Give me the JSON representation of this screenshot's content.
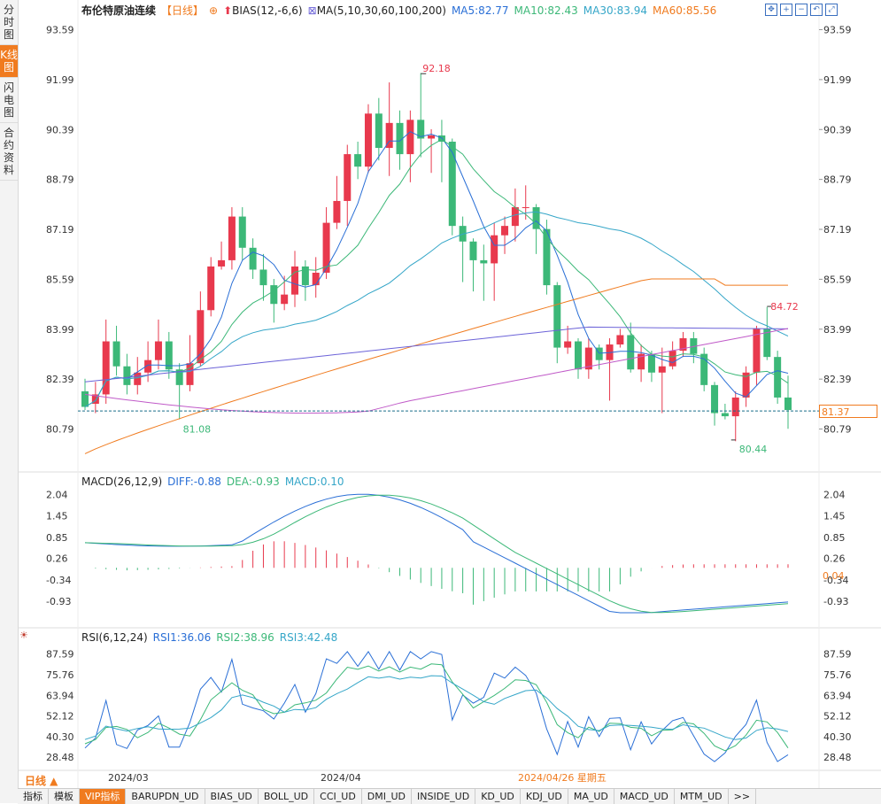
{
  "sidebar": {
    "tabs": [
      {
        "label": "分时图",
        "active": false
      },
      {
        "label": "K线图",
        "active": true
      },
      {
        "label": "闪电图",
        "active": false
      },
      {
        "label": "合约资料",
        "active": false
      }
    ]
  },
  "kline": {
    "title": "布伦特原油连续",
    "period_tag": "【日线】",
    "bias_label": "BIAS(12,-6,6)",
    "ma_label": "MA(5,10,30,60,100,200)",
    "ma5": "MA5:82.77",
    "ma10": "MA10:82.43",
    "ma30": "MA30:83.94",
    "ma60": "MA60:85.56",
    "high_label": "92.18",
    "low_label1": "81.08",
    "low_label2": "80.44",
    "recent_high_label": "84.72",
    "current_price": "81.37",
    "price_ticks": [
      "93.59",
      "91.99",
      "90.39",
      "88.79",
      "87.19",
      "85.59",
      "83.99",
      "82.39",
      "80.79"
    ]
  },
  "macd": {
    "label": "MACD(26,12,9)",
    "diff": "DIFF:-0.88",
    "dea": "DEA:-0.93",
    "macd": "MACD:0.10",
    "current": "0.04",
    "ticks": [
      "2.04",
      "1.45",
      "0.85",
      "0.26",
      "-0.34",
      "-0.93"
    ]
  },
  "rsi": {
    "label": "RSI(6,12,24)",
    "rsi1": "RSI1:36.06",
    "rsi2": "RSI2:38.96",
    "rsi3": "RSI3:42.48",
    "ticks": [
      "87.59",
      "75.76",
      "63.94",
      "52.12",
      "40.30",
      "28.48"
    ]
  },
  "dates": {
    "d1": "2024/03",
    "d2": "2024/04",
    "cursor": "2024/04/26 星期五"
  },
  "period_select": "日线 ▲",
  "bottom_tabs": [
    "指标",
    "模板",
    "VIP指标",
    "BARUPDN_UD",
    "BIAS_UD",
    "BOLL_UD",
    "CCI_UD",
    "DMI_UD",
    "INSIDE_UD",
    "KD_UD",
    "KDJ_UD",
    "MA_UD",
    "MACD_UD",
    "MTM_UD",
    ">>"
  ],
  "colors": {
    "up": "#e8394d",
    "down": "#3cb878",
    "ma5": "#2a6fd6",
    "ma10": "#3cb878",
    "ma30": "#35a6c8",
    "ma60": "#f07b1f",
    "ma100": "#6c63d8",
    "ma200": "#c05ac8",
    "accent": "#f07b1f"
  },
  "chart_data": {
    "type": "candlestick",
    "candles": [
      [
        82.0,
        81.5,
        82.4,
        81.4
      ],
      [
        81.6,
        81.9,
        82.3,
        81.3
      ],
      [
        81.9,
        83.6,
        84.3,
        81.6
      ],
      [
        83.6,
        82.8,
        84.1,
        82.5
      ],
      [
        82.8,
        82.2,
        83.2,
        81.9
      ],
      [
        82.2,
        82.6,
        83.1,
        81.9
      ],
      [
        82.6,
        83.0,
        83.6,
        82.3
      ],
      [
        83.0,
        83.6,
        84.3,
        82.7
      ],
      [
        83.6,
        82.7,
        83.9,
        82.4
      ],
      [
        82.7,
        82.2,
        82.9,
        81.1
      ],
      [
        82.2,
        82.9,
        83.8,
        82.0
      ],
      [
        82.9,
        84.6,
        85.2,
        82.8
      ],
      [
        84.6,
        86.0,
        86.3,
        84.4
      ],
      [
        86.0,
        86.2,
        86.8,
        85.9
      ],
      [
        86.2,
        87.6,
        87.9,
        85.9
      ],
      [
        87.6,
        86.6,
        87.9,
        86.2
      ],
      [
        86.6,
        85.9,
        86.9,
        85.6
      ],
      [
        85.9,
        85.4,
        86.4,
        84.9
      ],
      [
        85.4,
        84.8,
        85.6,
        84.2
      ],
      [
        84.8,
        85.1,
        85.7,
        84.6
      ],
      [
        85.1,
        86.0,
        86.5,
        84.7
      ],
      [
        86.0,
        85.4,
        86.2,
        84.9
      ],
      [
        85.4,
        85.8,
        86.3,
        85.0
      ],
      [
        85.8,
        87.4,
        87.9,
        85.6
      ],
      [
        87.4,
        88.1,
        88.9,
        87.2
      ],
      [
        88.1,
        89.6,
        89.9,
        87.3
      ],
      [
        89.6,
        89.2,
        90.0,
        88.8
      ],
      [
        89.2,
        90.9,
        91.2,
        89.0
      ],
      [
        90.9,
        89.8,
        91.4,
        89.4
      ],
      [
        89.8,
        90.6,
        91.9,
        88.9
      ],
      [
        90.6,
        89.6,
        91.0,
        89.1
      ],
      [
        89.6,
        90.7,
        91.0,
        88.7
      ],
      [
        90.7,
        90.1,
        92.2,
        89.5
      ],
      [
        90.1,
        90.2,
        90.4,
        89.0
      ],
      [
        90.2,
        90.0,
        90.7,
        88.7
      ],
      [
        90.0,
        87.3,
        90.1,
        87.0
      ],
      [
        87.3,
        86.8,
        87.6,
        85.5
      ],
      [
        86.8,
        86.2,
        86.9,
        85.2
      ],
      [
        86.2,
        86.1,
        86.7,
        84.9
      ],
      [
        86.1,
        87.0,
        87.4,
        84.9
      ],
      [
        87.0,
        87.3,
        87.6,
        86.4
      ],
      [
        87.3,
        87.9,
        88.5,
        86.8
      ],
      [
        87.9,
        87.9,
        88.6,
        87.5
      ],
      [
        87.9,
        87.2,
        88.0,
        86.4
      ],
      [
        87.2,
        85.4,
        87.5,
        85.1
      ],
      [
        85.4,
        83.4,
        85.5,
        82.9
      ],
      [
        83.4,
        83.6,
        84.1,
        83.2
      ],
      [
        83.6,
        82.7,
        83.7,
        82.4
      ],
      [
        82.7,
        83.4,
        83.7,
        82.4
      ],
      [
        83.4,
        83.0,
        83.5,
        82.7
      ],
      [
        83.0,
        83.5,
        83.7,
        81.7
      ],
      [
        83.5,
        83.8,
        84.0,
        83.4
      ],
      [
        83.8,
        82.7,
        84.2,
        82.6
      ],
      [
        82.7,
        83.2,
        83.5,
        82.3
      ],
      [
        83.2,
        82.6,
        83.3,
        82.3
      ],
      [
        82.6,
        82.8,
        83.4,
        81.3
      ],
      [
        82.8,
        83.3,
        83.6,
        82.7
      ],
      [
        83.3,
        83.7,
        83.9,
        83.1
      ],
      [
        83.7,
        83.2,
        83.9,
        82.9
      ],
      [
        83.2,
        82.2,
        83.4,
        82.0
      ],
      [
        82.2,
        81.3,
        82.3,
        80.9
      ],
      [
        81.3,
        81.2,
        81.6,
        81.1
      ],
      [
        81.2,
        81.8,
        82.0,
        80.4
      ],
      [
        81.8,
        82.6,
        82.8,
        81.5
      ],
      [
        82.6,
        84.0,
        84.1,
        82.2
      ],
      [
        84.0,
        83.1,
        84.7,
        83.0
      ],
      [
        83.1,
        81.8,
        83.3,
        81.6
      ],
      [
        81.8,
        81.4,
        82.5,
        80.8
      ]
    ],
    "ylim": [
      79.5,
      94.2
    ]
  }
}
